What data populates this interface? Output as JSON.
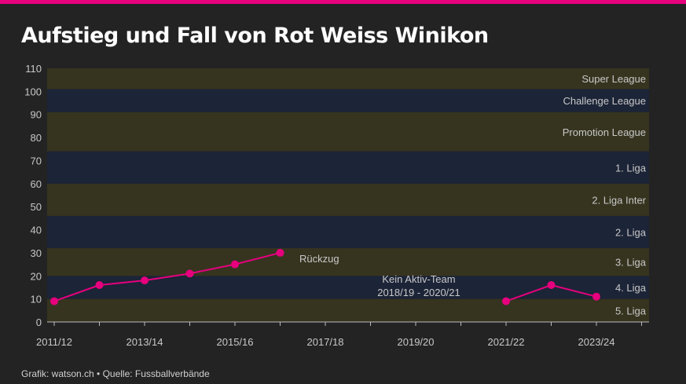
{
  "title": "Aufstieg und Fall von Rot Weiss Winikon",
  "footer": "Grafik: watson.ch • Quelle: Fussballverbände",
  "colors": {
    "accent": "#e6007e",
    "band_olive": "#36341f",
    "band_navy": "#1c2437",
    "axis_text": "#c8c8c8",
    "background": "#232323"
  },
  "chart_data": {
    "type": "line",
    "x_ticks": [
      "2011/12",
      "2013/14",
      "2015/16",
      "2017/18",
      "2019/20",
      "2021/22",
      "2023/24"
    ],
    "ylim": [
      0,
      110
    ],
    "y_ticks": [
      0,
      10,
      20,
      30,
      40,
      50,
      60,
      70,
      80,
      90,
      100,
      110
    ],
    "bands": [
      {
        "label": "5. Liga",
        "from": 0,
        "to": 10,
        "tone": "olive"
      },
      {
        "label": "4. Liga",
        "from": 10,
        "to": 20,
        "tone": "navy"
      },
      {
        "label": "3. Liga",
        "from": 20,
        "to": 32,
        "tone": "olive"
      },
      {
        "label": "2. Liga",
        "from": 32,
        "to": 46,
        "tone": "navy"
      },
      {
        "label": "2. Liga Inter",
        "from": 46,
        "to": 60,
        "tone": "olive"
      },
      {
        "label": "1. Liga",
        "from": 60,
        "to": 74,
        "tone": "navy"
      },
      {
        "label": "Promotion League",
        "from": 74,
        "to": 91,
        "tone": "olive"
      },
      {
        "label": "Challenge League",
        "from": 91,
        "to": 101,
        "tone": "navy"
      },
      {
        "label": "Super League",
        "from": 101,
        "to": 112,
        "tone": "olive"
      }
    ],
    "series": [
      {
        "segment": 1,
        "points": [
          {
            "x": "2011/12",
            "y": 9
          },
          {
            "x": "2012/13",
            "y": 16
          },
          {
            "x": "2013/14",
            "y": 18
          },
          {
            "x": "2014/15",
            "y": 21
          },
          {
            "x": "2015/16",
            "y": 25
          },
          {
            "x": "2016/17",
            "y": 30
          }
        ]
      },
      {
        "segment": 2,
        "points": [
          {
            "x": "2021/22",
            "y": 9
          },
          {
            "x": "2022/23",
            "y": 16
          },
          {
            "x": "2023/24",
            "y": 11
          }
        ]
      }
    ],
    "annotations": {
      "rueckzug": "Rückzug",
      "kein_aktiv_line1": "Kein Aktiv-Team",
      "kein_aktiv_line2": "2018/19 - 2020/21"
    }
  }
}
